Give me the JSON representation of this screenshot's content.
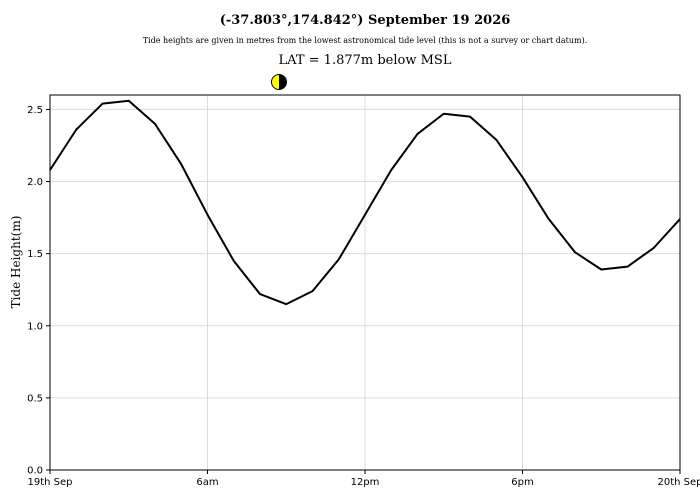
{
  "chart_data": {
    "type": "line",
    "title": "(-37.803°,174.842°) September 19 2026",
    "subtitle": "Tide heights are given in metres from the lowest astronomical tide level (this is not a survey or chart datum).",
    "annotation": "LAT = 1.877m below MSL",
    "y_label": "Tide Height(m)",
    "x": [
      0,
      1,
      2,
      3,
      4,
      5,
      6,
      7,
      8,
      9,
      10,
      11,
      12,
      13,
      14,
      15,
      16,
      17,
      18,
      19,
      20,
      21,
      22,
      23,
      24
    ],
    "series": [
      {
        "name": "Tide height",
        "color": "#000000",
        "values": [
          2.08,
          2.36,
          2.54,
          2.56,
          2.4,
          2.12,
          1.77,
          1.45,
          1.22,
          1.15,
          1.24,
          1.46,
          1.77,
          2.08,
          2.33,
          2.47,
          2.45,
          2.29,
          2.03,
          1.74,
          1.51,
          1.39,
          1.41,
          1.54,
          1.74
        ]
      }
    ],
    "xlim": [
      0,
      24
    ],
    "xticks": [
      {
        "value": 0,
        "label": "19th Sep"
      },
      {
        "value": 6,
        "label": "6am"
      },
      {
        "value": 12,
        "label": "12pm"
      },
      {
        "value": 18,
        "label": "6pm"
      },
      {
        "value": 24,
        "label": "20th Sep"
      }
    ],
    "ylim": [
      0,
      2.6
    ],
    "yticks": [
      {
        "value": 0,
        "label": "0.0"
      },
      {
        "value": 0.5,
        "label": "0.5"
      },
      {
        "value": 1,
        "label": "1.0"
      },
      {
        "value": 1.5,
        "label": "1.5"
      },
      {
        "value": 2,
        "label": "2.0"
      },
      {
        "value": 2.5,
        "label": "2.5"
      }
    ],
    "grid": true
  }
}
